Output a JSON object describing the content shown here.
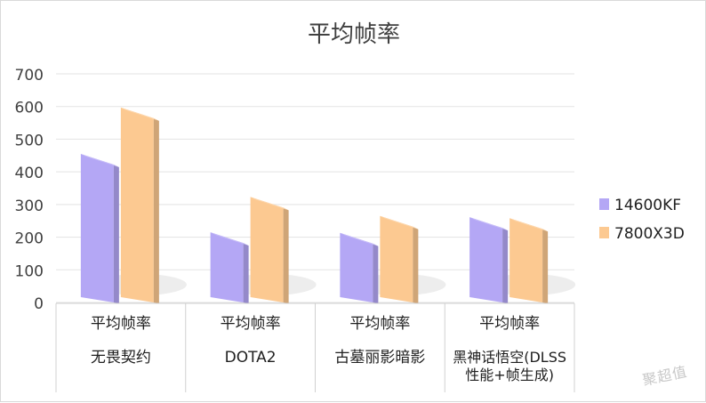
{
  "chart_data": {
    "type": "bar",
    "title": "平均帧率",
    "categories": [
      [
        "平均帧率",
        "无畏契约"
      ],
      [
        "平均帧率",
        "DOTA2"
      ],
      [
        "平均帧率",
        "古墓丽影暗影"
      ],
      [
        "平均帧率",
        "黑神话悟空(DLSS",
        "性能+帧生成)"
      ]
    ],
    "series": [
      {
        "name": "14600KF",
        "values": [
          455,
          215,
          213,
          261
        ],
        "color": "#b4a7f5"
      },
      {
        "name": "7800X3D",
        "values": [
          597,
          323,
          265,
          258
        ],
        "color": "#fcc991"
      }
    ],
    "ylim": [
      0,
      700
    ],
    "yticks": [
      0,
      100,
      200,
      300,
      400,
      500,
      600,
      700
    ],
    "grid": true,
    "legend_position": "right"
  },
  "watermark": "聚超值"
}
